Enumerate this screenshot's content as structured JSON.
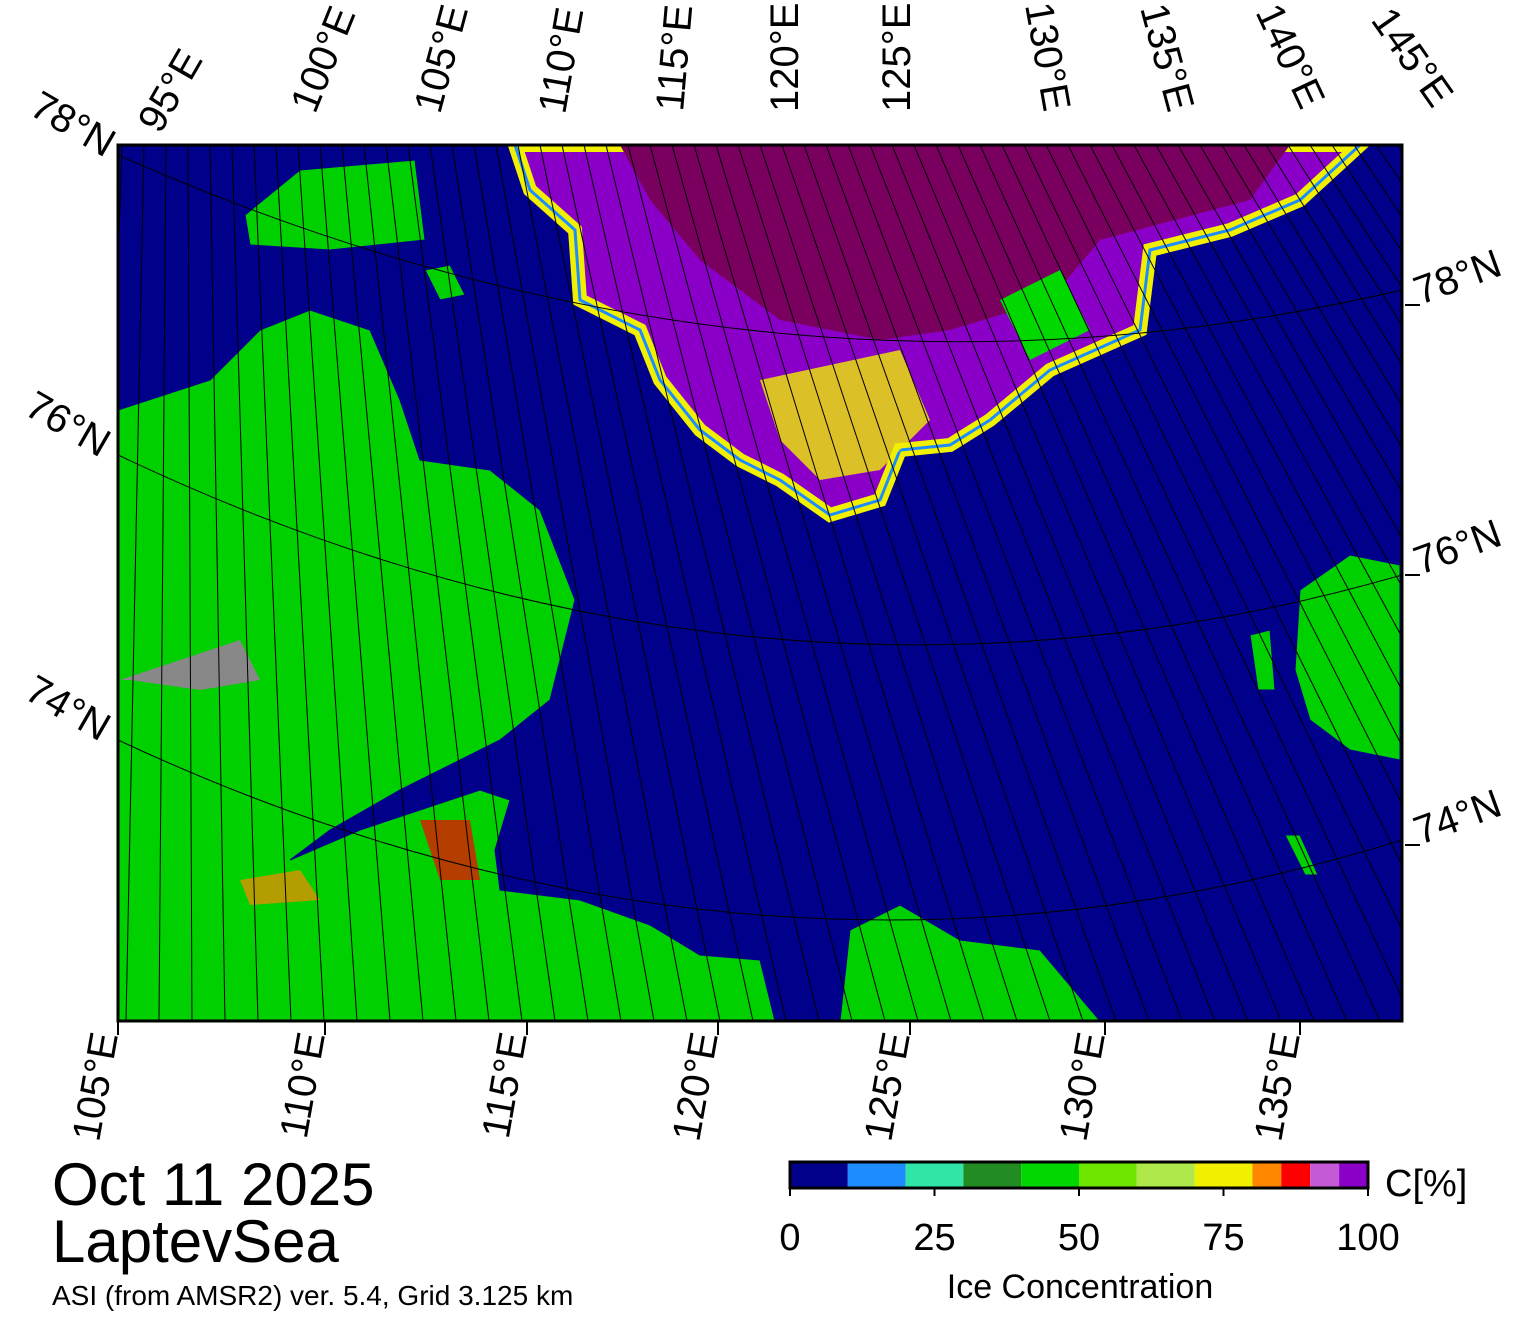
{
  "title": {
    "date": "Oct 11 2025",
    "region": "LaptevSea",
    "source": "ASI (from AMSR2) ver. 5.4,  Grid 3.125 km"
  },
  "map": {
    "top_labels": [
      "95°E",
      "100°E",
      "105°E",
      "110°E",
      "115°E",
      "120°E",
      "125°E",
      "130°E",
      "135°E",
      "140°E",
      "145°E"
    ],
    "left_labels": [
      "78°N",
      "76°N",
      "74°N"
    ],
    "right_labels": [
      "78°N",
      "76°N",
      "74°N"
    ],
    "bottom_labels": [
      "105°E",
      "110°E",
      "115°E",
      "120°E",
      "125°E",
      "130°E",
      "135°E"
    ]
  },
  "colorbar": {
    "unit": "C[%]",
    "label": "Ice Concentration",
    "range": [
      0,
      100
    ],
    "ticks": [
      0,
      25,
      50,
      75,
      100
    ],
    "bounds": [
      0,
      10,
      20,
      30,
      40,
      50,
      60,
      70,
      80,
      85,
      90,
      95,
      100
    ],
    "colors": [
      "#00008a",
      "#1e8cff",
      "#30e6a6",
      "#228b22",
      "#00d800",
      "#6ee600",
      "#aee84a",
      "#f0f000",
      "#ff8800",
      "#ff0000",
      "#c45ad6",
      "#8a00c8"
    ]
  }
}
